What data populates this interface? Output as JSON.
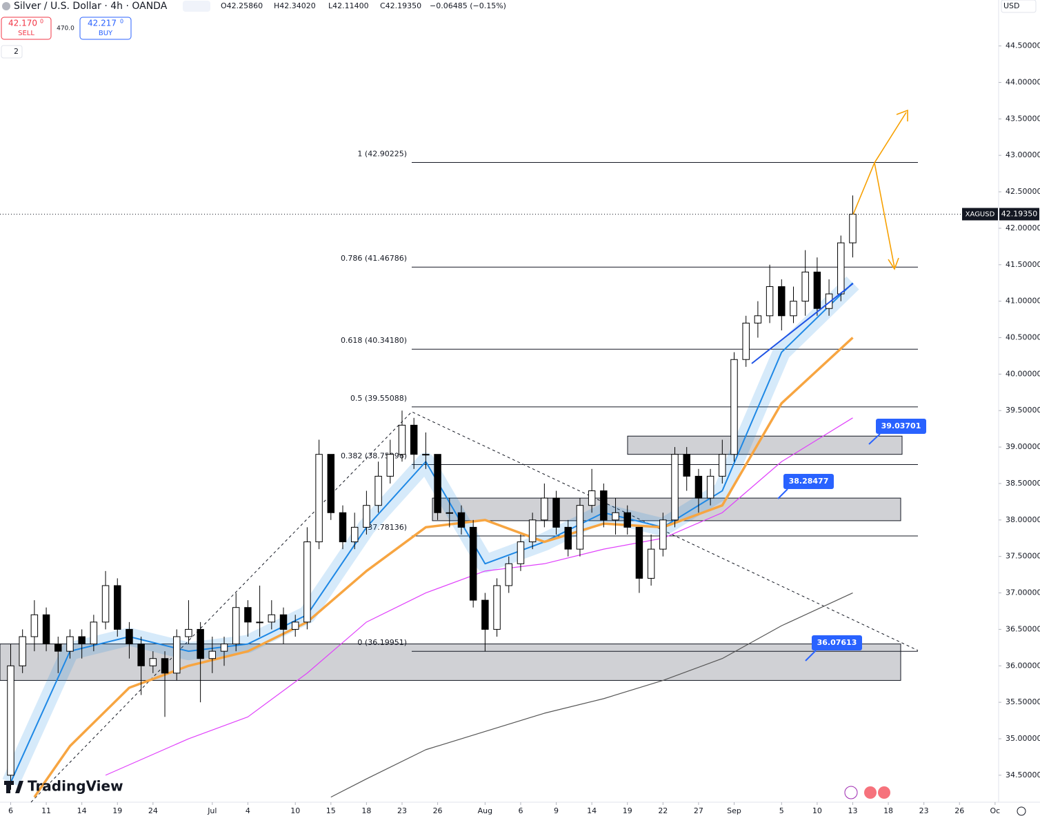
{
  "header": {
    "title": "Silver / U.S. Dollar · 4h · OANDA",
    "ohlc": [
      "O42.25860",
      "H42.34020",
      "L42.11400",
      "C42.19350",
      "−0.06485 (−0.15%)"
    ],
    "sell_price": "42.170",
    "sell_sup": "0",
    "sell_label": "SELL",
    "spread": "470.0",
    "buy_price": "42.217",
    "buy_sup": "0",
    "buy_label": "BUY",
    "indicators_count": "2",
    "currency": "USD",
    "logo": "TradingView"
  },
  "chart_data": {
    "type": "candlestick",
    "x": [
      0,
      1,
      2,
      3,
      4,
      5,
      6,
      7,
      8,
      9,
      10,
      11,
      12,
      13,
      14,
      15,
      16,
      17,
      18,
      19,
      20,
      21,
      22,
      23,
      24,
      25,
      26,
      27,
      28,
      29,
      30,
      31,
      32,
      33,
      34,
      35,
      36,
      37,
      38,
      39,
      40,
      41,
      42,
      43,
      44,
      45,
      46,
      47,
      48,
      49,
      50,
      51,
      52,
      53,
      54,
      55,
      56,
      57,
      58,
      59,
      60,
      61,
      62,
      63,
      64,
      65,
      66,
      67,
      68,
      69,
      70,
      71
    ],
    "open": [
      34.5,
      36.0,
      36.4,
      36.7,
      36.3,
      36.2,
      36.4,
      36.3,
      36.6,
      37.1,
      36.5,
      36.3,
      36.0,
      36.1,
      35.9,
      36.4,
      36.5,
      36.1,
      36.2,
      36.3,
      36.8,
      36.6,
      36.6,
      36.7,
      36.5,
      36.6,
      37.7,
      38.9,
      38.1,
      37.7,
      37.9,
      38.2,
      38.6,
      38.9,
      39.3,
      38.9,
      38.9,
      38.1,
      38.1,
      37.9,
      36.9,
      36.5,
      37.1,
      37.4,
      37.7,
      38.0,
      38.3,
      37.9,
      37.6,
      38.2,
      38.4,
      38.0,
      38.1,
      37.9,
      37.2,
      37.6,
      38.0,
      38.9,
      38.6,
      38.3,
      38.6,
      38.9,
      40.2,
      40.7,
      40.8,
      41.2,
      40.8,
      41.0,
      41.4,
      40.9,
      41.1,
      41.8
    ],
    "high": [
      36.3,
      36.5,
      36.9,
      36.8,
      36.4,
      36.5,
      36.5,
      36.7,
      37.3,
      37.2,
      36.6,
      36.4,
      36.2,
      36.2,
      36.5,
      36.9,
      36.6,
      36.4,
      36.4,
      37.0,
      36.9,
      37.1,
      36.9,
      36.8,
      36.7,
      37.9,
      39.1,
      38.9,
      38.2,
      38.1,
      38.4,
      38.8,
      39.1,
      39.5,
      39.4,
      39.2,
      38.9,
      38.3,
      38.2,
      38.0,
      37.0,
      37.2,
      37.5,
      37.8,
      38.1,
      38.5,
      38.4,
      38.0,
      38.3,
      38.7,
      38.5,
      38.3,
      38.2,
      37.9,
      37.8,
      38.1,
      39.0,
      39.0,
      38.7,
      38.7,
      39.1,
      40.3,
      40.8,
      41.0,
      41.5,
      41.3,
      41.2,
      41.7,
      41.6,
      41.3,
      41.9,
      42.45
    ],
    "low": [
      34.3,
      35.9,
      36.2,
      36.2,
      35.9,
      36.1,
      36.1,
      36.2,
      36.5,
      36.4,
      36.1,
      35.6,
      35.9,
      35.3,
      35.8,
      36.3,
      35.5,
      35.9,
      36.0,
      36.2,
      36.4,
      36.4,
      36.5,
      36.3,
      36.4,
      36.5,
      37.6,
      38.0,
      37.6,
      37.6,
      37.8,
      38.1,
      38.5,
      38.8,
      38.7,
      38.7,
      38.0,
      37.9,
      37.8,
      36.8,
      36.2,
      36.4,
      37.0,
      37.3,
      37.6,
      37.9,
      37.8,
      37.5,
      37.5,
      38.1,
      37.9,
      37.8,
      37.8,
      37.0,
      37.1,
      37.5,
      37.9,
      38.4,
      38.1,
      38.2,
      38.5,
      38.8,
      40.1,
      40.5,
      40.7,
      40.6,
      40.7,
      40.8,
      40.8,
      40.8,
      41.0,
      41.6
    ],
    "close": [
      36.0,
      36.4,
      36.7,
      36.3,
      36.2,
      36.4,
      36.3,
      36.6,
      37.1,
      36.5,
      36.3,
      36.0,
      36.1,
      35.9,
      36.4,
      36.5,
      36.1,
      36.2,
      36.3,
      36.8,
      36.6,
      36.6,
      36.7,
      36.5,
      36.6,
      37.7,
      38.9,
      38.1,
      37.7,
      37.9,
      38.2,
      38.6,
      38.9,
      39.3,
      38.9,
      38.9,
      38.1,
      38.1,
      37.9,
      36.9,
      36.5,
      37.1,
      37.4,
      37.7,
      38.0,
      38.3,
      37.9,
      37.6,
      38.2,
      38.4,
      38.0,
      38.1,
      37.9,
      37.2,
      37.6,
      38.0,
      38.9,
      38.6,
      38.3,
      38.6,
      38.9,
      40.2,
      40.7,
      40.8,
      41.2,
      40.8,
      41.0,
      41.4,
      40.9,
      41.1,
      41.8,
      42.1935
    ],
    "up_color": "#ffffff",
    "down_color": "#000000",
    "series": [
      {
        "color": "#1e88e5",
        "x": [
          0,
          5,
          10,
          15,
          20,
          25,
          30,
          35,
          40,
          45,
          50,
          55,
          60,
          65,
          71
        ],
        "values": [
          34.4,
          36.2,
          36.4,
          36.2,
          36.3,
          36.7,
          37.9,
          38.8,
          37.4,
          37.7,
          38.1,
          37.9,
          38.4,
          40.3,
          41.25
        ]
      },
      {
        "color": "#f7a541",
        "x": [
          2,
          5,
          10,
          15,
          20,
          25,
          30,
          35,
          40,
          45,
          50,
          55,
          60,
          65,
          71
        ],
        "values": [
          34.2,
          34.9,
          35.7,
          36.0,
          36.2,
          36.6,
          37.3,
          37.9,
          38.0,
          37.7,
          37.95,
          37.9,
          38.2,
          39.6,
          40.5
        ]
      },
      {
        "color": "#e040fb",
        "x": [
          8,
          15,
          20,
          25,
          30,
          35,
          40,
          45,
          50,
          55,
          60,
          65,
          71
        ],
        "values": [
          34.5,
          35.0,
          35.3,
          35.9,
          36.6,
          37.0,
          37.3,
          37.4,
          37.6,
          37.75,
          38.1,
          38.8,
          39.4
        ]
      },
      {
        "color": "#555555",
        "x": [
          27,
          30,
          35,
          40,
          45,
          50,
          55,
          60,
          65,
          71
        ],
        "values": [
          34.2,
          34.45,
          34.85,
          35.1,
          35.35,
          35.55,
          35.8,
          36.1,
          36.55,
          37.0
        ]
      }
    ],
    "fib_levels": [
      {
        "label": "1 (42.90225)",
        "value": 42.90225
      },
      {
        "label": "0.786 (41.46786)",
        "value": 41.46786
      },
      {
        "label": "0.618 (40.34180)",
        "value": 40.3418
      },
      {
        "label": "0.5 (39.55088)",
        "value": 39.55088
      },
      {
        "label": "0.382 (38.75996)",
        "value": 38.75996
      },
      {
        "label": "(37.78136)",
        "value": 37.78136
      },
      {
        "label": "0 (36.19951)",
        "value": 36.19951
      }
    ],
    "zones": [
      {
        "top": 39.15,
        "bottom": 38.9
      },
      {
        "top": 38.3,
        "bottom": 37.99
      },
      {
        "top": 36.3,
        "bottom": 35.8
      }
    ],
    "callouts": [
      "39.03701",
      "38.28477",
      "36.07613"
    ],
    "last_price": {
      "symbol": "XAGUSD",
      "value": 42.1935,
      "label": "42.19350"
    },
    "xlim": [
      -0.9,
      83.3
    ],
    "ylim": [
      34.13,
      45.13
    ],
    "xticks": [
      {
        "value": 0,
        "label": "6"
      },
      {
        "value": 3,
        "label": "11"
      },
      {
        "value": 6,
        "label": "14"
      },
      {
        "value": 9,
        "label": "19"
      },
      {
        "value": 12,
        "label": "24"
      },
      {
        "value": 17,
        "label": "Jul"
      },
      {
        "value": 20,
        "label": "4"
      },
      {
        "value": 24,
        "label": "10"
      },
      {
        "value": 27,
        "label": "15"
      },
      {
        "value": 30,
        "label": "18"
      },
      {
        "value": 33,
        "label": "23"
      },
      {
        "value": 36,
        "label": "26"
      },
      {
        "value": 40,
        "label": "Aug"
      },
      {
        "value": 43,
        "label": "6"
      },
      {
        "value": 46,
        "label": "9"
      },
      {
        "value": 49,
        "label": "14"
      },
      {
        "value": 52,
        "label": "19"
      },
      {
        "value": 55,
        "label": "22"
      },
      {
        "value": 58,
        "label": "27"
      },
      {
        "value": 61,
        "label": "Sep"
      },
      {
        "value": 65,
        "label": "5"
      },
      {
        "value": 68,
        "label": "10"
      },
      {
        "value": 71,
        "label": "13"
      },
      {
        "value": 74,
        "label": "18"
      },
      {
        "value": 77,
        "label": "23"
      },
      {
        "value": 80,
        "label": "26"
      },
      {
        "value": 83,
        "label": "Oc"
      }
    ],
    "yticks": [
      {
        "value": 34.5,
        "label": "34.50000"
      },
      {
        "value": 35,
        "label": "35.00000"
      },
      {
        "value": 35.5,
        "label": "35.50000"
      },
      {
        "value": 36,
        "label": "36.00000"
      },
      {
        "value": 36.5,
        "label": "36.50000"
      },
      {
        "value": 37,
        "label": "37.00000"
      },
      {
        "value": 37.5,
        "label": "37.50000"
      },
      {
        "value": 38,
        "label": "38.00000"
      },
      {
        "value": 38.5,
        "label": "38.50000"
      },
      {
        "value": 39,
        "label": "39.00000"
      },
      {
        "value": 39.5,
        "label": "39.50000"
      },
      {
        "value": 40,
        "label": "40.00000"
      },
      {
        "value": 40.5,
        "label": "40.50000"
      },
      {
        "value": 41,
        "label": "41.00000"
      },
      {
        "value": 41.5,
        "label": "41.50000"
      },
      {
        "value": 42,
        "label": "42.00000"
      },
      {
        "value": 42.5,
        "label": "42.50000"
      },
      {
        "value": 43,
        "label": "43.00000"
      },
      {
        "value": 43.5,
        "label": "43.50000"
      },
      {
        "value": 44,
        "label": "44.00000"
      },
      {
        "value": 44.5,
        "label": "44.50000"
      }
    ]
  }
}
